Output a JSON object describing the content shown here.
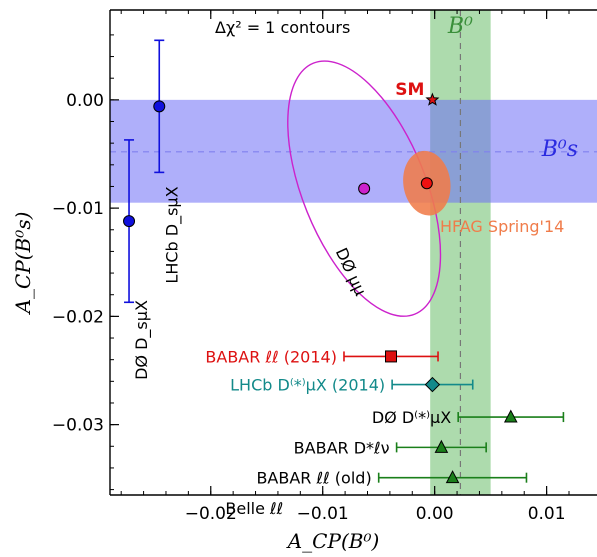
{
  "chart_data": {
    "type": "scatter",
    "title": "Δχ² = 1  contours",
    "xlabel": "A_CP(B⁰)",
    "ylabel": "A_CP(B⁰s)",
    "xlim": [
      -0.029,
      0.0145
    ],
    "ylim": [
      -0.0365,
      0.0083
    ],
    "x_ticks": [
      -0.02,
      -0.01,
      0.0,
      0.01
    ],
    "x_tick_labels": [
      "−0.02",
      "−0.01",
      "0.00",
      "0.01"
    ],
    "y_ticks": [
      0.0,
      -0.01,
      -0.02,
      -0.03
    ],
    "y_tick_labels": [
      "0.00",
      "−0.01",
      "−0.02",
      "−0.03"
    ],
    "bands": [
      {
        "name": "B⁰",
        "axis": "x",
        "center": 0.0023,
        "low": -0.0004,
        "high": 0.005,
        "color": "#5cb85c"
      },
      {
        "name": "B⁰s",
        "axis": "y",
        "center": -0.0048,
        "low": -0.0095,
        "high": 0.0,
        "color": "#6e6ef5"
      }
    ],
    "sm_point": {
      "label": "SM",
      "x": -0.0002,
      "y": 0.0
    },
    "hfag": {
      "label": "HFAG Spring'14",
      "x": -0.0007,
      "y": -0.0077,
      "sx": 0.0021,
      "sy": 0.003,
      "angle": -8,
      "color": "#f07c4a"
    },
    "d0_contour": {
      "label": "DØ μμ",
      "x": -0.0063,
      "y": -0.0082,
      "sx": 0.0055,
      "sy": 0.0125,
      "angle": -22,
      "color": "#cc22cc"
    },
    "bs_measurements": [
      {
        "label": "LHCb D_sμX",
        "x": -0.0246,
        "y": -0.0006,
        "err": 0.0061,
        "color": "#1010dd"
      },
      {
        "label": "DØ D_sμX",
        "x": -0.0273,
        "y": -0.0112,
        "err": 0.0075,
        "color": "#1010dd"
      }
    ],
    "b0_measurements": [
      {
        "label": "BABAR ℓℓ (2014)",
        "x": -0.0039,
        "y": -0.0237,
        "err": 0.0042,
        "marker": "square",
        "color": "#dd1111"
      },
      {
        "label": "LHCb D⁽*⁾μX (2014)",
        "x": -0.0002,
        "y": -0.0263,
        "err": 0.0036,
        "marker": "diamond",
        "color": "#138a8a"
      },
      {
        "label": "DØ D⁽*⁾μX",
        "x": 0.0068,
        "y": -0.0293,
        "err": 0.0047,
        "marker": "triangle",
        "color": "#1a7f1a"
      },
      {
        "label": "BABAR D*ℓν",
        "x": 0.0006,
        "y": -0.0321,
        "err": 0.004,
        "marker": "triangle",
        "color": "#1a7f1a"
      },
      {
        "label": "BABAR ℓℓ (old)",
        "x": 0.0016,
        "y": -0.0349,
        "err": 0.0066,
        "marker": "triangle",
        "color": "#1a7f1a"
      },
      {
        "label": "Belle ℓℓ",
        "x": -0.0011,
        "y": -0.0377,
        "err": 0.0118,
        "marker": "triangle",
        "color": "#1a7f1a"
      }
    ]
  }
}
